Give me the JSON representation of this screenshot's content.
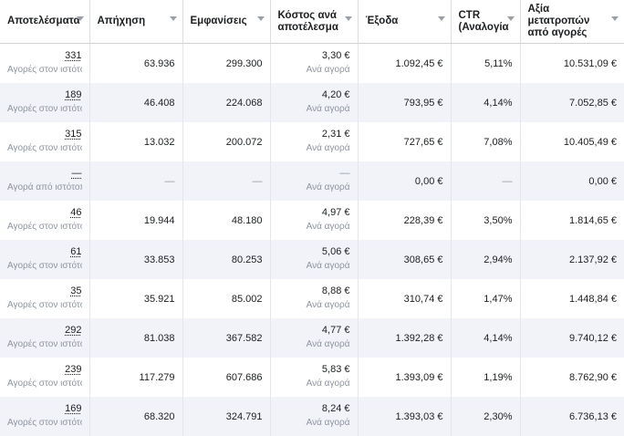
{
  "columns": [
    "Αποτελέσματα",
    "Απήχηση",
    "Εμφανίσεις",
    "Κόστος ανά αποτέλεσμα",
    "Έξοδα",
    "CTR (Αναλογία κλικ/...",
    "Αξία μετατροπών από αγορές"
  ],
  "rows": [
    {
      "results": "331",
      "results_sub": "Αγορές στον ιστότοπο",
      "reach": "63.936",
      "impressions": "299.300",
      "cpr": "3,30 €",
      "cpr_sub": "Ανά αγορά",
      "spend": "1.092,45 €",
      "ctr": "5,11%",
      "value": "10.531,09 €"
    },
    {
      "results": "189",
      "results_sub": "Αγορές στον ιστότοπο",
      "reach": "46.408",
      "impressions": "224.068",
      "cpr": "4,20 €",
      "cpr_sub": "Ανά αγορά",
      "spend": "793,95 €",
      "ctr": "4,14%",
      "value": "7.052,85 €"
    },
    {
      "results": "315",
      "results_sub": "Αγορές στον ιστότοπο",
      "reach": "13.032",
      "impressions": "200.072",
      "cpr": "2,31 €",
      "cpr_sub": "Ανά αγορά",
      "spend": "727,65 €",
      "ctr": "7,08%",
      "value": "10.405,49 €"
    },
    {
      "results": "—",
      "results_sub": "Αγορά από ιστότοπο",
      "reach": "—",
      "impressions": "—",
      "cpr": "—",
      "cpr_sub": "Ανά αγορά",
      "spend": "0,00 €",
      "ctr": "—",
      "value": "0,00 €"
    },
    {
      "results": "46",
      "results_sub": "Αγορές στον ιστότοπο",
      "reach": "19.944",
      "impressions": "48.180",
      "cpr": "4,97 €",
      "cpr_sub": "Ανά αγορά",
      "spend": "228,39 €",
      "ctr": "3,50%",
      "value": "1.814,65 €"
    },
    {
      "results": "61",
      "results_sub": "Αγορές στον ιστότοπο",
      "reach": "33.853",
      "impressions": "80.253",
      "cpr": "5,06 €",
      "cpr_sub": "Ανά αγορά",
      "spend": "308,65 €",
      "ctr": "2,94%",
      "value": "2.137,92 €"
    },
    {
      "results": "35",
      "results_sub": "Αγορές στον ιστότοπο",
      "reach": "35.921",
      "impressions": "85.002",
      "cpr": "8,88 €",
      "cpr_sub": "Ανά αγορά",
      "spend": "310,74 €",
      "ctr": "1,47%",
      "value": "1.448,84 €"
    },
    {
      "results": "292",
      "results_sub": "Αγορές στον ιστότοπο",
      "reach": "81.038",
      "impressions": "367.582",
      "cpr": "4,77 €",
      "cpr_sub": "Ανά αγορά",
      "spend": "1.392,28 €",
      "ctr": "4,14%",
      "value": "9.740,12 €"
    },
    {
      "results": "239",
      "results_sub": "Αγορές στον ιστότοπο",
      "reach": "117.279",
      "impressions": "607.686",
      "cpr": "5,83 €",
      "cpr_sub": "Ανά αγορά",
      "spend": "1.393,09 €",
      "ctr": "1,19%",
      "value": "8.762,90 €"
    },
    {
      "results": "169",
      "results_sub": "Αγορές στον ιστότοπο",
      "reach": "68.320",
      "impressions": "324.791",
      "cpr": "8,24 €",
      "cpr_sub": "Ανά αγορά",
      "spend": "1.393,03 €",
      "ctr": "2,30%",
      "value": "6.736,13 €"
    }
  ]
}
